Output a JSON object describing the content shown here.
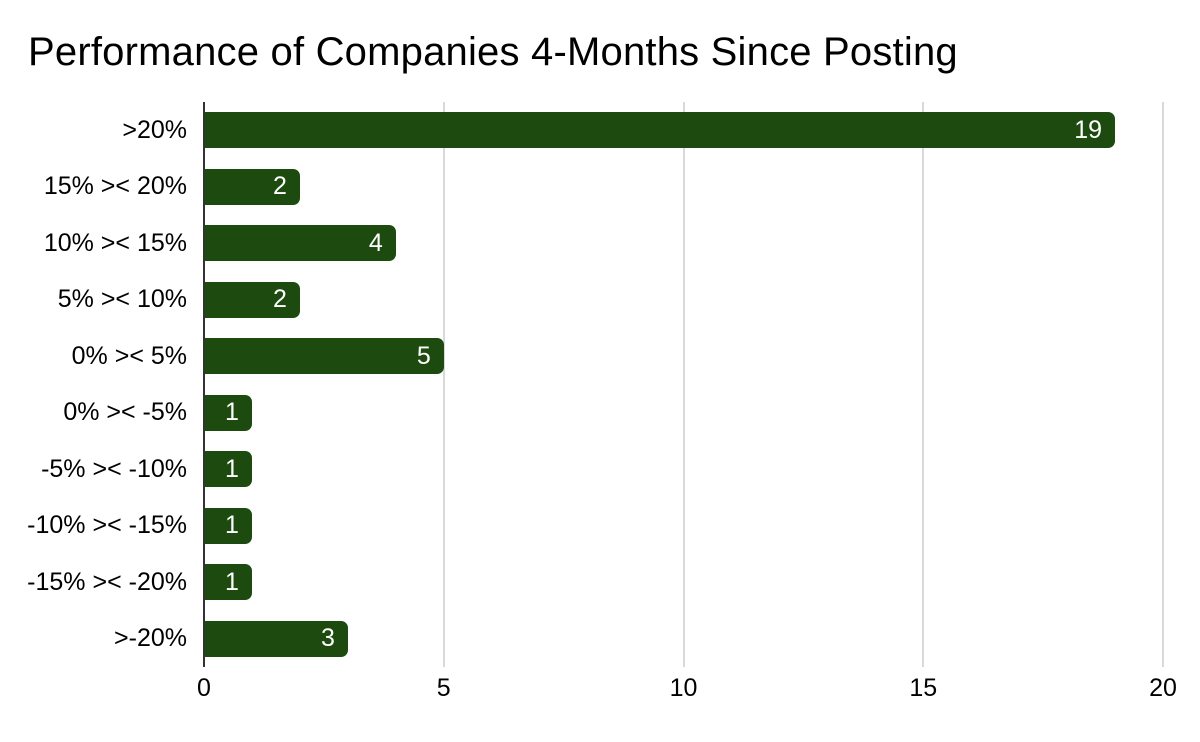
{
  "chart_data": {
    "type": "bar",
    "orientation": "horizontal",
    "title": "Performance of Companies 4-Months Since Posting",
    "categories": [
      ">20%",
      "15% >< 20%",
      "10% >< 15%",
      "5% >< 10%",
      "0% >< 5%",
      "0% >< -5%",
      "-5% >< -10%",
      "-10% >< -15%",
      "-15% >< -20%",
      ">-20%"
    ],
    "values": [
      19,
      2,
      4,
      2,
      5,
      1,
      1,
      1,
      1,
      3
    ],
    "xlabel": "",
    "ylabel": "",
    "xlim": [
      0,
      20
    ],
    "xticks": [
      0,
      5,
      10,
      15,
      20
    ],
    "grid": true,
    "legend": false,
    "value_labels_position": "inside-end",
    "colors": {
      "bar": "#1c4a0f",
      "value_label": "#ffffff",
      "gridline": "#d9d9d9",
      "zero_axis": "#333333",
      "text": "#000000",
      "background": "#ffffff"
    }
  }
}
